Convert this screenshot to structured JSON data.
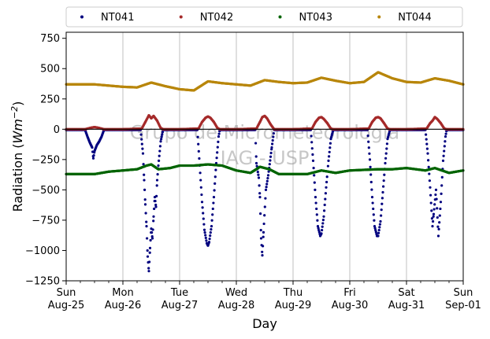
{
  "chart_data": {
    "type": "scatter",
    "xlabel": "Day",
    "ylabel_main": "Radiation (",
    "ylabel_unit": "Wm",
    "ylabel_exp": "−2",
    "ylabel_close": ")",
    "ylim": [
      -1250,
      800
    ],
    "yticks": [
      -1250,
      -1000,
      -750,
      -500,
      -250,
      0,
      250,
      500,
      750
    ],
    "ytick_labels": [
      "−1250",
      "−1000",
      "−750",
      "−500",
      "−250",
      "0",
      "250",
      "500",
      "750"
    ],
    "xlim": [
      "2024-08-25",
      "2024-09-01"
    ],
    "xticks": [
      {
        "date": "2024-08-25",
        "day": "Sun",
        "date_label": "Aug-25"
      },
      {
        "date": "2024-08-26",
        "day": "Mon",
        "date_label": "Aug-26"
      },
      {
        "date": "2024-08-27",
        "day": "Tue",
        "date_label": "Aug-27"
      },
      {
        "date": "2024-08-28",
        "day": "Wed",
        "date_label": "Aug-28"
      },
      {
        "date": "2024-08-29",
        "day": "Thu",
        "date_label": "Aug-29"
      },
      {
        "date": "2024-08-30",
        "day": "Fri",
        "date_label": "Aug-30"
      },
      {
        "date": "2024-08-31",
        "day": "Sat",
        "date_label": "Aug-31"
      },
      {
        "date": "2024-09-01",
        "day": "Sun",
        "date_label": "Sep-01"
      }
    ],
    "grid": "vertical",
    "zero_line": true,
    "legend_position": "top, above plot",
    "watermark": [
      "Grupo de Micrometeorologia",
      "IAG - USP"
    ],
    "series": [
      {
        "name": "NT041",
        "color": "#00007f",
        "points": [
          [
            "2024-08-25T00:00",
            -5
          ],
          [
            "2024-08-25T08:00",
            -5
          ],
          [
            "2024-08-25T09:00",
            -60
          ],
          [
            "2024-08-25T10:00",
            -110
          ],
          [
            "2024-08-25T11:00",
            -150
          ],
          [
            "2024-08-25T11:30",
            -240
          ],
          [
            "2024-08-25T12:00",
            -180
          ],
          [
            "2024-08-25T13:00",
            -130
          ],
          [
            "2024-08-25T14:00",
            -100
          ],
          [
            "2024-08-25T15:00",
            -60
          ],
          [
            "2024-08-25T16:00",
            -5
          ],
          [
            "2024-08-26T00:00",
            -5
          ],
          [
            "2024-08-26T07:30",
            -5
          ],
          [
            "2024-08-26T08:30",
            -200
          ],
          [
            "2024-08-26T09:00",
            -420
          ],
          [
            "2024-08-26T09:30",
            -620
          ],
          [
            "2024-08-26T10:00",
            -800
          ],
          [
            "2024-08-26T10:30",
            -1050
          ],
          [
            "2024-08-26T11:00",
            -1170
          ],
          [
            "2024-08-26T11:30",
            -980
          ],
          [
            "2024-08-26T12:00",
            -820
          ],
          [
            "2024-08-26T12:30",
            -900
          ],
          [
            "2024-08-26T13:00",
            -720
          ],
          [
            "2024-08-26T13:30",
            -560
          ],
          [
            "2024-08-26T14:00",
            -640
          ],
          [
            "2024-08-26T14:30",
            -420
          ],
          [
            "2024-08-26T15:00",
            -300
          ],
          [
            "2024-08-26T16:00",
            -100
          ],
          [
            "2024-08-26T17:00",
            -5
          ],
          [
            "2024-08-27T00:00",
            -5
          ],
          [
            "2024-08-27T07:30",
            -5
          ],
          [
            "2024-08-27T08:30",
            -300
          ],
          [
            "2024-08-27T09:30",
            -600
          ],
          [
            "2024-08-27T10:30",
            -830
          ],
          [
            "2024-08-27T11:30",
            -940
          ],
          [
            "2024-08-27T12:00",
            -960
          ],
          [
            "2024-08-27T12:30",
            -930
          ],
          [
            "2024-08-27T13:30",
            -800
          ],
          [
            "2024-08-27T14:30",
            -560
          ],
          [
            "2024-08-27T15:30",
            -280
          ],
          [
            "2024-08-27T16:30",
            -60
          ],
          [
            "2024-08-27T17:00",
            -5
          ],
          [
            "2024-08-28T00:00",
            -5
          ],
          [
            "2024-08-28T08:00",
            -5
          ],
          [
            "2024-08-28T08:30",
            -280
          ],
          [
            "2024-08-28T09:30",
            -400
          ],
          [
            "2024-08-28T10:00",
            -560
          ],
          [
            "2024-08-28T10:30",
            -900
          ],
          [
            "2024-08-28T11:00",
            -1040
          ],
          [
            "2024-08-28T11:30",
            -850
          ],
          [
            "2024-08-28T12:30",
            -500
          ],
          [
            "2024-08-28T13:30",
            -380
          ],
          [
            "2024-08-28T15:00",
            -150
          ],
          [
            "2024-08-28T16:00",
            -5
          ],
          [
            "2024-08-29T00:00",
            -5
          ],
          [
            "2024-08-29T07:30",
            -5
          ],
          [
            "2024-08-29T08:30",
            -260
          ],
          [
            "2024-08-29T09:30",
            -560
          ],
          [
            "2024-08-29T10:30",
            -800
          ],
          [
            "2024-08-29T11:30",
            -880
          ],
          [
            "2024-08-29T12:00",
            -860
          ],
          [
            "2024-08-29T13:00",
            -720
          ],
          [
            "2024-08-29T14:00",
            -480
          ],
          [
            "2024-08-29T15:00",
            -260
          ],
          [
            "2024-08-29T16:00",
            -80
          ],
          [
            "2024-08-29T17:00",
            -5
          ],
          [
            "2024-08-30T00:00",
            -5
          ],
          [
            "2024-08-30T07:30",
            -5
          ],
          [
            "2024-08-30T08:30",
            -250
          ],
          [
            "2024-08-30T09:30",
            -560
          ],
          [
            "2024-08-30T10:30",
            -800
          ],
          [
            "2024-08-30T11:30",
            -880
          ],
          [
            "2024-08-30T12:00",
            -880
          ],
          [
            "2024-08-30T13:00",
            -760
          ],
          [
            "2024-08-30T14:00",
            -520
          ],
          [
            "2024-08-30T15:00",
            -280
          ],
          [
            "2024-08-30T16:00",
            -80
          ],
          [
            "2024-08-30T17:00",
            -5
          ],
          [
            "2024-08-31T00:00",
            -5
          ],
          [
            "2024-08-31T08:00",
            -5
          ],
          [
            "2024-08-31T09:00",
            -200
          ],
          [
            "2024-08-31T10:00",
            -480
          ],
          [
            "2024-08-31T11:00",
            -800
          ],
          [
            "2024-08-31T11:30",
            -700
          ],
          [
            "2024-08-31T12:30",
            -500
          ],
          [
            "2024-08-31T13:30",
            -880
          ],
          [
            "2024-08-31T14:30",
            -600
          ],
          [
            "2024-08-31T15:30",
            -260
          ],
          [
            "2024-08-31T16:30",
            -60
          ],
          [
            "2024-08-31T17:00",
            -5
          ],
          [
            "2024-09-01T00:00",
            -5
          ]
        ]
      },
      {
        "name": "NT042",
        "color": "#a52a2a",
        "points": [
          [
            "2024-08-25T00:00",
            0
          ],
          [
            "2024-08-25T08:00",
            0
          ],
          [
            "2024-08-25T10:00",
            10
          ],
          [
            "2024-08-25T12:00",
            18
          ],
          [
            "2024-08-25T14:00",
            10
          ],
          [
            "2024-08-25T16:00",
            0
          ],
          [
            "2024-08-26T00:00",
            0
          ],
          [
            "2024-08-26T08:00",
            5
          ],
          [
            "2024-08-26T09:30",
            60
          ],
          [
            "2024-08-26T11:00",
            115
          ],
          [
            "2024-08-26T12:00",
            90
          ],
          [
            "2024-08-26T13:00",
            110
          ],
          [
            "2024-08-26T14:30",
            70
          ],
          [
            "2024-08-26T16:00",
            10
          ],
          [
            "2024-08-26T17:00",
            0
          ],
          [
            "2024-08-27T00:00",
            0
          ],
          [
            "2024-08-27T08:00",
            5
          ],
          [
            "2024-08-27T09:30",
            60
          ],
          [
            "2024-08-27T11:00",
            95
          ],
          [
            "2024-08-27T12:00",
            105
          ],
          [
            "2024-08-27T13:00",
            95
          ],
          [
            "2024-08-27T14:30",
            60
          ],
          [
            "2024-08-27T16:00",
            10
          ],
          [
            "2024-08-27T17:00",
            0
          ],
          [
            "2024-08-28T00:00",
            0
          ],
          [
            "2024-08-28T08:30",
            5
          ],
          [
            "2024-08-28T10:00",
            60
          ],
          [
            "2024-08-28T11:00",
            100
          ],
          [
            "2024-08-28T12:00",
            110
          ],
          [
            "2024-08-28T13:00",
            90
          ],
          [
            "2024-08-28T14:30",
            40
          ],
          [
            "2024-08-28T16:00",
            0
          ],
          [
            "2024-08-29T00:00",
            0
          ],
          [
            "2024-08-29T08:00",
            5
          ],
          [
            "2024-08-29T09:30",
            60
          ],
          [
            "2024-08-29T11:00",
            95
          ],
          [
            "2024-08-29T12:00",
            100
          ],
          [
            "2024-08-29T13:00",
            85
          ],
          [
            "2024-08-29T14:30",
            50
          ],
          [
            "2024-08-29T16:00",
            5
          ],
          [
            "2024-08-29T17:00",
            0
          ],
          [
            "2024-08-30T00:00",
            0
          ],
          [
            "2024-08-30T08:00",
            5
          ],
          [
            "2024-08-30T09:30",
            60
          ],
          [
            "2024-08-30T11:00",
            95
          ],
          [
            "2024-08-30T12:00",
            100
          ],
          [
            "2024-08-30T13:00",
            90
          ],
          [
            "2024-08-30T14:30",
            50
          ],
          [
            "2024-08-30T16:00",
            5
          ],
          [
            "2024-08-30T17:00",
            0
          ],
          [
            "2024-08-31T00:00",
            0
          ],
          [
            "2024-08-31T08:30",
            5
          ],
          [
            "2024-08-31T10:00",
            50
          ],
          [
            "2024-08-31T11:00",
            70
          ],
          [
            "2024-08-31T12:00",
            100
          ],
          [
            "2024-08-31T13:00",
            85
          ],
          [
            "2024-08-31T14:30",
            50
          ],
          [
            "2024-08-31T16:00",
            5
          ],
          [
            "2024-08-31T17:00",
            0
          ],
          [
            "2024-09-01T00:00",
            0
          ]
        ]
      },
      {
        "name": "NT043",
        "color": "#006400",
        "points": [
          [
            "2024-08-25T00:00",
            -370
          ],
          [
            "2024-08-25T12:00",
            -370
          ],
          [
            "2024-08-25T18:00",
            -350
          ],
          [
            "2024-08-26T00:00",
            -340
          ],
          [
            "2024-08-26T06:00",
            -330
          ],
          [
            "2024-08-26T10:00",
            -300
          ],
          [
            "2024-08-26T12:00",
            -290
          ],
          [
            "2024-08-26T15:00",
            -330
          ],
          [
            "2024-08-26T20:00",
            -320
          ],
          [
            "2024-08-27T00:00",
            -300
          ],
          [
            "2024-08-27T06:00",
            -300
          ],
          [
            "2024-08-27T12:00",
            -290
          ],
          [
            "2024-08-27T18:00",
            -300
          ],
          [
            "2024-08-28T00:00",
            -340
          ],
          [
            "2024-08-28T06:00",
            -360
          ],
          [
            "2024-08-28T10:00",
            -310
          ],
          [
            "2024-08-28T14:00",
            -330
          ],
          [
            "2024-08-28T18:00",
            -370
          ],
          [
            "2024-08-29T00:00",
            -370
          ],
          [
            "2024-08-29T06:00",
            -370
          ],
          [
            "2024-08-29T12:00",
            -340
          ],
          [
            "2024-08-29T18:00",
            -360
          ],
          [
            "2024-08-30T00:00",
            -340
          ],
          [
            "2024-08-30T12:00",
            -330
          ],
          [
            "2024-08-30T18:00",
            -330
          ],
          [
            "2024-08-31T00:00",
            -320
          ],
          [
            "2024-08-31T08:00",
            -340
          ],
          [
            "2024-08-31T12:00",
            -320
          ],
          [
            "2024-08-31T18:00",
            -360
          ],
          [
            "2024-09-01T00:00",
            -340
          ]
        ]
      },
      {
        "name": "NT044",
        "color": "#b8860b",
        "points": [
          [
            "2024-08-25T00:00",
            370
          ],
          [
            "2024-08-25T12:00",
            370
          ],
          [
            "2024-08-25T18:00",
            360
          ],
          [
            "2024-08-26T00:00",
            350
          ],
          [
            "2024-08-26T06:00",
            345
          ],
          [
            "2024-08-26T12:00",
            385
          ],
          [
            "2024-08-26T18:00",
            355
          ],
          [
            "2024-08-27T00:00",
            330
          ],
          [
            "2024-08-27T06:00",
            320
          ],
          [
            "2024-08-27T12:00",
            395
          ],
          [
            "2024-08-27T18:00",
            380
          ],
          [
            "2024-08-28T00:00",
            370
          ],
          [
            "2024-08-28T06:00",
            360
          ],
          [
            "2024-08-28T12:00",
            405
          ],
          [
            "2024-08-28T18:00",
            390
          ],
          [
            "2024-08-29T00:00",
            380
          ],
          [
            "2024-08-29T06:00",
            385
          ],
          [
            "2024-08-29T12:00",
            425
          ],
          [
            "2024-08-29T18:00",
            400
          ],
          [
            "2024-08-30T00:00",
            380
          ],
          [
            "2024-08-30T06:00",
            390
          ],
          [
            "2024-08-30T12:00",
            470
          ],
          [
            "2024-08-30T18:00",
            420
          ],
          [
            "2024-08-31T00:00",
            390
          ],
          [
            "2024-08-31T06:00",
            385
          ],
          [
            "2024-08-31T12:00",
            420
          ],
          [
            "2024-08-31T18:00",
            400
          ],
          [
            "2024-09-01T00:00",
            370
          ]
        ]
      }
    ]
  }
}
